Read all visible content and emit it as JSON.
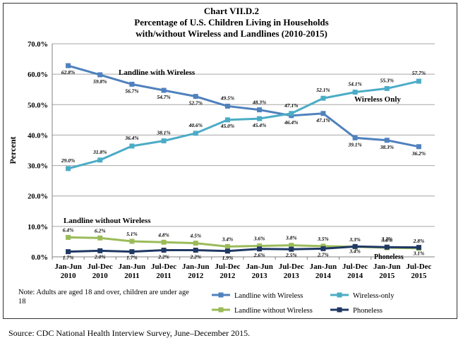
{
  "chart_data": {
    "type": "line",
    "title_lines": [
      "Chart VII.D.2",
      "Percentage of U.S. Children Living in Households",
      "with/without Wireless and Landlines (2010-2015)"
    ],
    "ylabel": "Percent",
    "ylim": [
      0,
      70
    ],
    "yticks": [
      "0.0%",
      "10.0%",
      "20.0%",
      "30.0%",
      "40.0%",
      "50.0%",
      "60.0%",
      "70.0%"
    ],
    "categories": [
      [
        "Jan-Jun",
        "2010"
      ],
      [
        "Jul-Dec",
        "2010"
      ],
      [
        "Jan-Jun",
        "2011"
      ],
      [
        "Jul-Dec",
        "2011"
      ],
      [
        "Jan-Jun",
        "2012"
      ],
      [
        "Jul-Dec",
        "2012"
      ],
      [
        "Jan-Jun",
        "2013"
      ],
      [
        "Jul-Dec",
        "2013"
      ],
      [
        "Jan-Jun",
        "2014"
      ],
      [
        "Jul-Dec",
        "2014"
      ],
      [
        "Jan-Jun",
        "2015"
      ],
      [
        "Jul-Dec",
        "2015"
      ]
    ],
    "grid": true,
    "legend_position": "bottom-right",
    "series": [
      {
        "name": "Landline with Wireless",
        "color": "#4f81bd",
        "values": [
          62.8,
          59.8,
          56.7,
          54.7,
          52.7,
          49.5,
          48.3,
          46.4,
          47.1,
          39.1,
          38.3,
          36.2
        ],
        "labels": [
          "62.8%",
          "59.8%",
          "56.7%",
          "54.7%",
          "52.7%",
          "49.5%",
          "48.3%",
          "46.4%",
          "47.1%",
          "39.1%",
          "38.3%",
          "36.2%"
        ]
      },
      {
        "name": "Wireless-only",
        "color": "#4bacc6",
        "values": [
          29.0,
          31.8,
          36.4,
          38.1,
          40.6,
          45.0,
          45.4,
          47.1,
          52.1,
          54.1,
          55.3,
          57.7
        ],
        "labels": [
          "29.0%",
          "31.8%",
          "36.4%",
          "38.1%",
          "40.6%",
          "45.0%",
          "45.4%",
          "47.1%",
          "52.1%",
          "54.1%",
          "55.3%",
          "57.7%"
        ]
      },
      {
        "name": "Landline without Wireless",
        "color": "#9bbb59",
        "values": [
          6.4,
          6.2,
          5.1,
          4.8,
          4.5,
          3.4,
          3.6,
          3.8,
          3.5,
          3.3,
          3.0,
          2.8
        ],
        "labels": [
          "6.4%",
          "6.2%",
          "5.1%",
          "4.8%",
          "4.5%",
          "3.4%",
          "3.6%",
          "3.8%",
          "3.5%",
          "3.3%",
          "3.0%",
          "2.8%"
        ]
      },
      {
        "name": "Phoneless",
        "color": "#1f3864",
        "values": [
          1.7,
          2.0,
          1.7,
          2.2,
          2.2,
          1.9,
          2.6,
          2.5,
          2.7,
          3.4,
          3.2,
          3.1
        ],
        "labels": [
          "1.7%",
          "2.0%",
          "1.7%",
          "2.2%",
          "2.2%",
          "1.9%",
          "2.6%",
          "2.5%",
          "2.7%",
          "3.4%",
          "3.2%",
          "3.1%"
        ]
      }
    ],
    "annotations": {
      "landline_with_wireless": "Landline with Wireless",
      "wireless_only": "Wireless Only",
      "landline_without_wireless": "Landline without Wireless",
      "phoneless": "Phoneless"
    }
  },
  "note": "Note:  Adults are aged 18 and over, children are under age 18",
  "source": "Source:  CDC National Health Interview Survey, June–December 2015."
}
